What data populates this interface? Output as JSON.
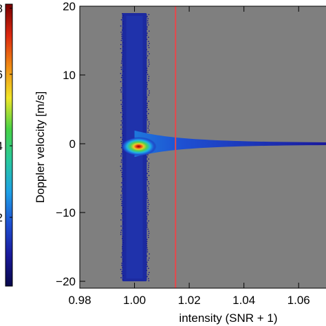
{
  "chart_data": {
    "type": "heatmap",
    "xlabel": "intensity (SNR + 1)",
    "ylabel": "Doppler  velocity [m/s]",
    "xlim": [
      0.98,
      1.07
    ],
    "ylim": [
      -21,
      20
    ],
    "x_ticks": [
      {
        "value": 0.98,
        "label": "0.98"
      },
      {
        "value": 1.0,
        "label": "1.00"
      },
      {
        "value": 1.02,
        "label": "1.02"
      },
      {
        "value": 1.04,
        "label": "1.04"
      },
      {
        "value": 1.06,
        "label": "1.06"
      }
    ],
    "y_ticks": [
      {
        "value": 20,
        "label": "20"
      },
      {
        "value": 10,
        "label": "10"
      },
      {
        "value": 0,
        "label": "0"
      },
      {
        "value": -10,
        "label": "−10"
      },
      {
        "value": -20,
        "label": "−20"
      }
    ],
    "reference_line": {
      "x": 1.015,
      "color": "#e8474a"
    },
    "background_color": "#7f7f7f",
    "density_features": [
      {
        "name": "noise band",
        "x_center": 1.0,
        "x_halfwidth": 0.0045,
        "y_range": [
          -20,
          19
        ],
        "level": 0.12
      },
      {
        "name": "signal tail",
        "x_range": [
          1.0,
          1.07
        ],
        "y_center": 0,
        "y_halfwidth_start": 1.2,
        "level": 0.15
      },
      {
        "name": "peak",
        "x": 1.001,
        "y": -0.4,
        "level": 1.0
      }
    ],
    "colorbar": {
      "colors": [
        "#08084a",
        "#1a1a9c",
        "#1e50d2",
        "#1ea0e6",
        "#28c8a0",
        "#46d246",
        "#f0e628",
        "#f08c14",
        "#dc2810",
        "#780000"
      ],
      "tick_labels": [
        "8",
        "6",
        "4",
        "2"
      ]
    }
  }
}
